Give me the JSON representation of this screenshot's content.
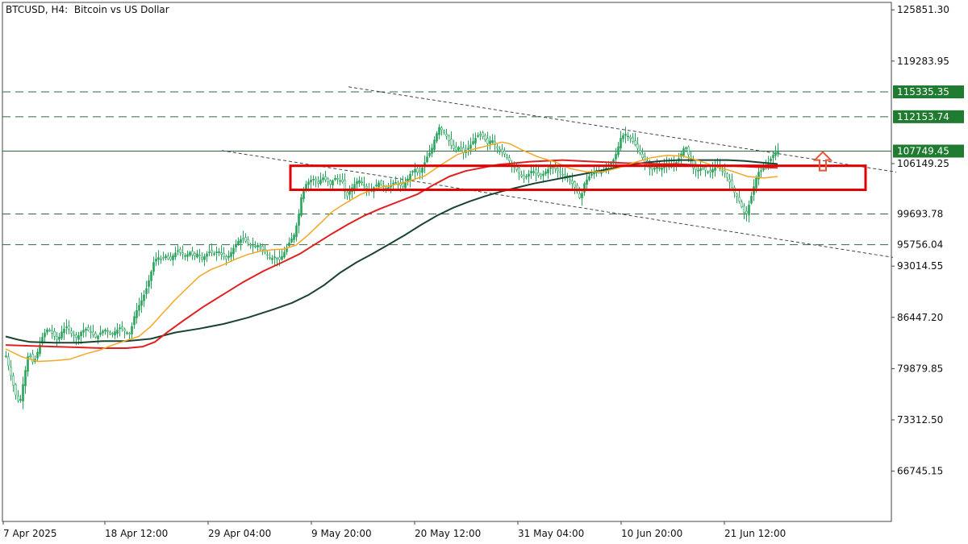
{
  "header": {
    "title": "BTCUSD, H4:  Bitcoin vs US Dollar"
  },
  "colors": {
    "background": "#ffffff",
    "candle": "#26a65b",
    "ma_fast": "#f5a623",
    "ma_mid": "#e02020",
    "ma_slow": "#1b4332",
    "zone": "#e00000",
    "arrow": "#e8553b",
    "level_tag": "#1e7b30",
    "level_line": "#2e6b3e",
    "trendline": "#444444"
  },
  "chart_data": {
    "type": "candlestick",
    "symbol": "BTCUSD",
    "timeframe": "H4",
    "y_ticks": [
      "125851.30",
      "119283.95",
      "106149.25",
      "93014.55",
      "86447.20",
      "79879.85",
      "73312.50",
      "66745.15"
    ],
    "y_range": [
      60300,
      126800
    ],
    "x_ticks": [
      "7 Apr 2025",
      "18 Apr 12:00",
      "29 Apr 04:00",
      "9 May 20:00",
      "20 May 12:00",
      "31 May 04:00",
      "10 Jun 20:00",
      "21 Jun 12:00"
    ],
    "levels": [
      {
        "price": 115335.35,
        "label": "115335.35",
        "style": "dashed",
        "tag": true
      },
      {
        "price": 112153.74,
        "label": "112153.74",
        "style": "dashed",
        "tag": true
      },
      {
        "price": 107749.45,
        "label": "107749.45",
        "style": "solid",
        "tag": true
      },
      {
        "price": 99693.78,
        "label": "99693.78",
        "style": "dashed",
        "tag": false
      },
      {
        "price": 95756.04,
        "label": "95756.04",
        "style": "dashed",
        "tag": false
      }
    ],
    "close_path": [
      [
        0,
        81500
      ],
      [
        6,
        79000
      ],
      [
        12,
        76500
      ],
      [
        17,
        75300
      ],
      [
        22,
        78500
      ],
      [
        28,
        82000
      ],
      [
        34,
        80500
      ],
      [
        40,
        82300
      ],
      [
        46,
        84200
      ],
      [
        52,
        85000
      ],
      [
        58,
        84300
      ],
      [
        64,
        83500
      ],
      [
        70,
        84800
      ],
      [
        76,
        85300
      ],
      [
        82,
        84200
      ],
      [
        88,
        83800
      ],
      [
        94,
        84700
      ],
      [
        100,
        85000
      ],
      [
        106,
        84400
      ],
      [
        112,
        83800
      ],
      [
        118,
        84600
      ],
      [
        124,
        84900
      ],
      [
        130,
        84200
      ],
      [
        136,
        84700
      ],
      [
        142,
        85200
      ],
      [
        148,
        84600
      ],
      [
        154,
        84300
      ],
      [
        158,
        86300
      ],
      [
        163,
        87600
      ],
      [
        168,
        88600
      ],
      [
        173,
        89800
      ],
      [
        178,
        91500
      ],
      [
        183,
        93500
      ],
      [
        188,
        94200
      ],
      [
        193,
        93800
      ],
      [
        198,
        94300
      ],
      [
        203,
        93700
      ],
      [
        208,
        94500
      ],
      [
        213,
        95000
      ],
      [
        218,
        94600
      ],
      [
        223,
        94300
      ],
      [
        228,
        94800
      ],
      [
        233,
        94200
      ],
      [
        238,
        94700
      ],
      [
        243,
        93900
      ],
      [
        248,
        94500
      ],
      [
        253,
        94900
      ],
      [
        258,
        94600
      ],
      [
        263,
        95000
      ],
      [
        268,
        94400
      ],
      [
        273,
        93900
      ],
      [
        278,
        94600
      ],
      [
        283,
        95500
      ],
      [
        288,
        96200
      ],
      [
        293,
        96600
      ],
      [
        298,
        96100
      ],
      [
        303,
        95700
      ],
      [
        308,
        95400
      ],
      [
        313,
        95800
      ],
      [
        318,
        95100
      ],
      [
        323,
        94500
      ],
      [
        328,
        93900
      ],
      [
        333,
        94200
      ],
      [
        338,
        93700
      ],
      [
        343,
        94400
      ],
      [
        348,
        95400
      ],
      [
        352,
        96200
      ],
      [
        357,
        97000
      ],
      [
        362,
        99000
      ],
      [
        367,
        102500
      ],
      [
        372,
        103500
      ],
      [
        377,
        104000
      ],
      [
        382,
        104200
      ],
      [
        387,
        103600
      ],
      [
        392,
        104400
      ],
      [
        397,
        104000
      ],
      [
        402,
        103500
      ],
      [
        407,
        104300
      ],
      [
        412,
        104100
      ],
      [
        417,
        103800
      ],
      [
        422,
        101800
      ],
      [
        427,
        102800
      ],
      [
        432,
        103500
      ],
      [
        437,
        104100
      ],
      [
        442,
        103600
      ],
      [
        447,
        103000
      ],
      [
        452,
        102600
      ],
      [
        457,
        103200
      ],
      [
        462,
        103700
      ],
      [
        467,
        103300
      ],
      [
        472,
        102900
      ],
      [
        477,
        103400
      ],
      [
        482,
        103800
      ],
      [
        487,
        103500
      ],
      [
        492,
        103200
      ],
      [
        497,
        104000
      ],
      [
        502,
        105000
      ],
      [
        507,
        105400
      ],
      [
        512,
        104800
      ],
      [
        517,
        105800
      ],
      [
        522,
        107000
      ],
      [
        527,
        107800
      ],
      [
        532,
        109500
      ],
      [
        537,
        110800
      ],
      [
        542,
        110300
      ],
      [
        547,
        109500
      ],
      [
        552,
        108500
      ],
      [
        557,
        107800
      ],
      [
        562,
        108300
      ],
      [
        567,
        107600
      ],
      [
        572,
        108000
      ],
      [
        577,
        108700
      ],
      [
        582,
        109400
      ],
      [
        587,
        110000
      ],
      [
        592,
        109500
      ],
      [
        597,
        108700
      ],
      [
        602,
        109300
      ],
      [
        607,
        108400
      ],
      [
        612,
        107800
      ],
      [
        617,
        107500
      ],
      [
        622,
        106800
      ],
      [
        627,
        106000
      ],
      [
        632,
        105500
      ],
      [
        637,
        104800
      ],
      [
        642,
        104200
      ],
      [
        647,
        104700
      ],
      [
        652,
        105300
      ],
      [
        657,
        104900
      ],
      [
        662,
        104500
      ],
      [
        667,
        104900
      ],
      [
        672,
        105400
      ],
      [
        677,
        105800
      ],
      [
        682,
        105400
      ],
      [
        687,
        105000
      ],
      [
        692,
        104600
      ],
      [
        697,
        104200
      ],
      [
        702,
        103600
      ],
      [
        707,
        102800
      ],
      [
        712,
        101500
      ],
      [
        717,
        103600
      ],
      [
        722,
        104400
      ],
      [
        727,
        104900
      ],
      [
        732,
        105300
      ],
      [
        737,
        105000
      ],
      [
        742,
        105400
      ],
      [
        747,
        105900
      ],
      [
        752,
        106400
      ],
      [
        757,
        107600
      ],
      [
        762,
        109400
      ],
      [
        767,
        110000
      ],
      [
        772,
        109600
      ],
      [
        777,
        109000
      ],
      [
        782,
        108300
      ],
      [
        787,
        107300
      ],
      [
        792,
        106300
      ],
      [
        797,
        105600
      ],
      [
        802,
        105400
      ],
      [
        807,
        105800
      ],
      [
        812,
        105500
      ],
      [
        817,
        106000
      ],
      [
        822,
        105700
      ],
      [
        827,
        106000
      ],
      [
        832,
        106400
      ],
      [
        837,
        107400
      ],
      [
        842,
        108500
      ],
      [
        847,
        107000
      ],
      [
        852,
        105600
      ],
      [
        857,
        105200
      ],
      [
        862,
        105600
      ],
      [
        867,
        105300
      ],
      [
        872,
        105000
      ],
      [
        877,
        105500
      ],
      [
        882,
        105800
      ],
      [
        887,
        105300
      ],
      [
        892,
        104800
      ],
      [
        897,
        103800
      ],
      [
        902,
        102600
      ],
      [
        907,
        101800
      ],
      [
        912,
        100600
      ],
      [
        917,
        99400
      ],
      [
        922,
        101200
      ],
      [
        927,
        103200
      ],
      [
        932,
        105000
      ],
      [
        937,
        105300
      ],
      [
        942,
        105800
      ],
      [
        947,
        106600
      ],
      [
        952,
        107400
      ],
      [
        957,
        107800
      ]
    ],
    "ma_fast": [
      [
        0,
        82400
      ],
      [
        20,
        81400
      ],
      [
        40,
        80800
      ],
      [
        60,
        80900
      ],
      [
        80,
        81100
      ],
      [
        100,
        81800
      ],
      [
        115,
        82200
      ],
      [
        130,
        82800
      ],
      [
        150,
        83500
      ],
      [
        165,
        84000
      ],
      [
        180,
        85300
      ],
      [
        195,
        87000
      ],
      [
        210,
        88700
      ],
      [
        225,
        90200
      ],
      [
        240,
        91700
      ],
      [
        255,
        92600
      ],
      [
        270,
        93200
      ],
      [
        285,
        93900
      ],
      [
        300,
        94500
      ],
      [
        315,
        94900
      ],
      [
        330,
        95100
      ],
      [
        345,
        95200
      ],
      [
        360,
        95700
      ],
      [
        375,
        97000
      ],
      [
        390,
        98500
      ],
      [
        405,
        100000
      ],
      [
        420,
        101000
      ],
      [
        440,
        102200
      ],
      [
        460,
        103000
      ],
      [
        480,
        103400
      ],
      [
        500,
        103900
      ],
      [
        520,
        104600
      ],
      [
        540,
        106000
      ],
      [
        560,
        107300
      ],
      [
        580,
        108000
      ],
      [
        600,
        108500
      ],
      [
        615,
        108900
      ],
      [
        625,
        108700
      ],
      [
        640,
        107900
      ],
      [
        660,
        107000
      ],
      [
        680,
        106400
      ],
      [
        700,
        105500
      ],
      [
        720,
        105100
      ],
      [
        740,
        105100
      ],
      [
        760,
        105600
      ],
      [
        780,
        106300
      ],
      [
        800,
        106900
      ],
      [
        820,
        107200
      ],
      [
        840,
        107100
      ],
      [
        860,
        106500
      ],
      [
        880,
        105800
      ],
      [
        900,
        105200
      ],
      [
        920,
        104500
      ],
      [
        940,
        104300
      ],
      [
        957,
        104500
      ]
    ],
    "ma_mid": [
      [
        0,
        82900
      ],
      [
        30,
        82800
      ],
      [
        60,
        82700
      ],
      [
        90,
        82600
      ],
      [
        120,
        82500
      ],
      [
        150,
        82500
      ],
      [
        170,
        82700
      ],
      [
        185,
        83300
      ],
      [
        200,
        84500
      ],
      [
        220,
        86000
      ],
      [
        245,
        87800
      ],
      [
        270,
        89400
      ],
      [
        295,
        91000
      ],
      [
        320,
        92400
      ],
      [
        345,
        93600
      ],
      [
        365,
        94600
      ],
      [
        385,
        95900
      ],
      [
        405,
        97200
      ],
      [
        425,
        98400
      ],
      [
        445,
        99500
      ],
      [
        465,
        100400
      ],
      [
        490,
        101400
      ],
      [
        510,
        102200
      ],
      [
        530,
        103400
      ],
      [
        550,
        104500
      ],
      [
        570,
        105200
      ],
      [
        590,
        105600
      ],
      [
        610,
        106000
      ],
      [
        630,
        106200
      ],
      [
        650,
        106400
      ],
      [
        670,
        106500
      ],
      [
        690,
        106600
      ],
      [
        710,
        106500
      ],
      [
        730,
        106400
      ],
      [
        750,
        106300
      ],
      [
        770,
        106200
      ],
      [
        790,
        106200
      ],
      [
        810,
        106100
      ],
      [
        830,
        106100
      ],
      [
        850,
        106000
      ],
      [
        870,
        105900
      ],
      [
        890,
        105900
      ],
      [
        910,
        105800
      ],
      [
        930,
        105700
      ],
      [
        957,
        105600
      ]
    ],
    "ma_slow": [
      [
        0,
        84000
      ],
      [
        15,
        83600
      ],
      [
        30,
        83300
      ],
      [
        60,
        83200
      ],
      [
        90,
        83200
      ],
      [
        120,
        83400
      ],
      [
        150,
        83400
      ],
      [
        180,
        83700
      ],
      [
        210,
        84500
      ],
      [
        240,
        85000
      ],
      [
        270,
        85600
      ],
      [
        300,
        86400
      ],
      [
        330,
        87400
      ],
      [
        355,
        88300
      ],
      [
        375,
        89300
      ],
      [
        395,
        90600
      ],
      [
        415,
        92200
      ],
      [
        435,
        93500
      ],
      [
        455,
        94600
      ],
      [
        475,
        95800
      ],
      [
        495,
        97000
      ],
      [
        515,
        98300
      ],
      [
        535,
        99500
      ],
      [
        555,
        100500
      ],
      [
        575,
        101300
      ],
      [
        595,
        102000
      ],
      [
        615,
        102600
      ],
      [
        635,
        103100
      ],
      [
        655,
        103600
      ],
      [
        675,
        104000
      ],
      [
        695,
        104400
      ],
      [
        715,
        104800
      ],
      [
        735,
        105200
      ],
      [
        755,
        105600
      ],
      [
        775,
        106000
      ],
      [
        795,
        106300
      ],
      [
        815,
        106500
      ],
      [
        835,
        106600
      ],
      [
        855,
        106600
      ],
      [
        875,
        106600
      ],
      [
        895,
        106600
      ],
      [
        915,
        106500
      ],
      [
        935,
        106300
      ],
      [
        957,
        106100
      ]
    ],
    "trendlines": [
      {
        "p1": [
          425,
          115980
        ],
        "p2": [
          1104,
          105070
        ],
        "style": "dashed"
      },
      {
        "p1": [
          268,
          107820
        ],
        "p2": [
          1100,
          94130
        ],
        "style": "dashed"
      }
    ],
    "zone": {
      "x1": 360,
      "x2": 1073,
      "y_top": 105870,
      "y_bottom": 102790
    },
    "arrow": {
      "x": 1020,
      "y": 106600,
      "direction": "up"
    }
  }
}
